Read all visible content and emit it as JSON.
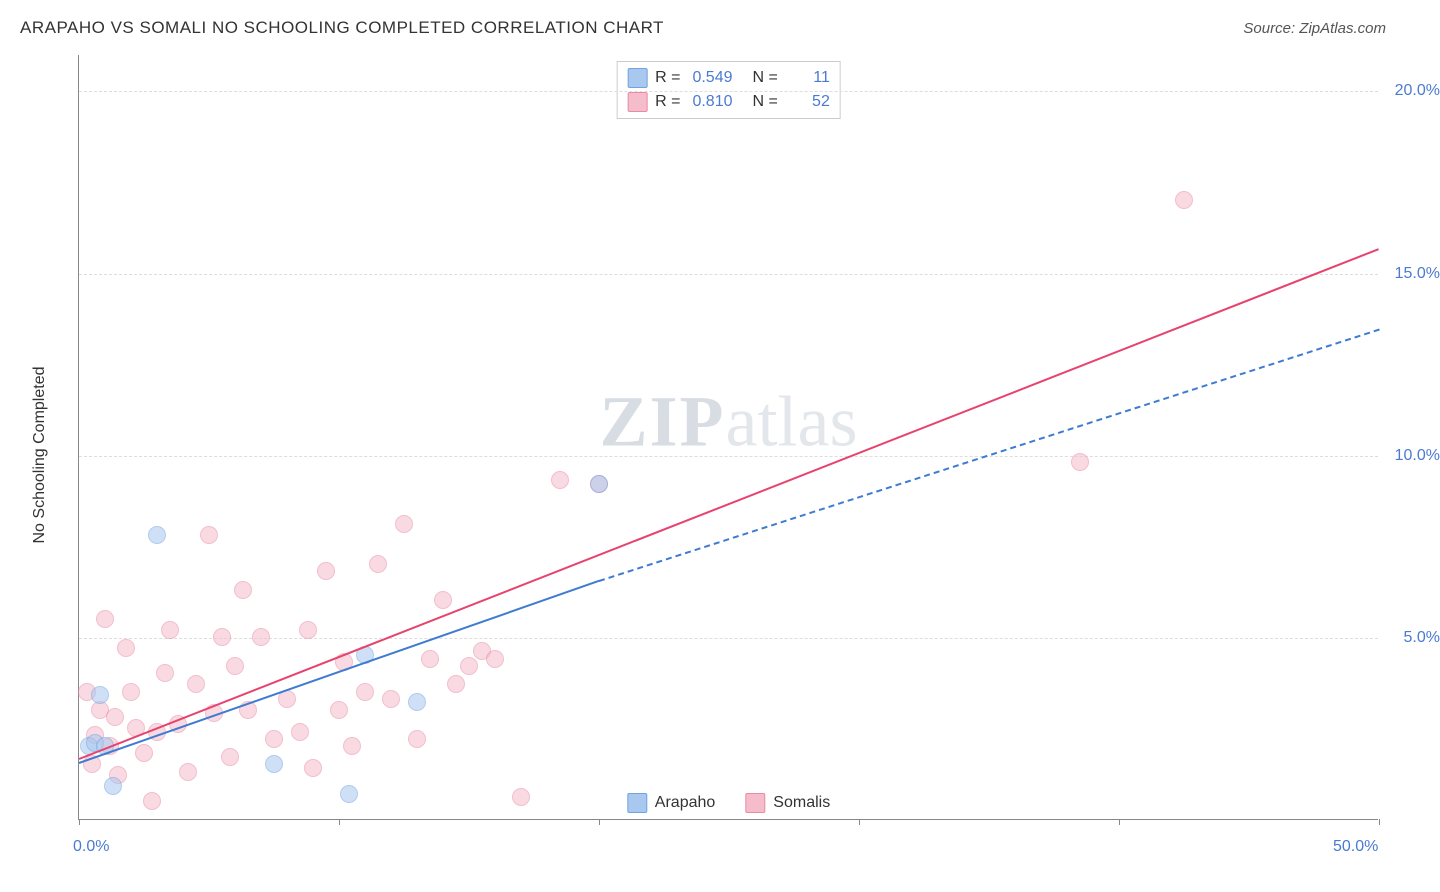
{
  "header": {
    "title": "ARAPAHO VS SOMALI NO SCHOOLING COMPLETED CORRELATION CHART",
    "source_prefix": "Source: ",
    "source_name": "ZipAtlas.com"
  },
  "watermark": {
    "zip": "ZIP",
    "atlas": "atlas"
  },
  "chart": {
    "type": "scatter",
    "ylabel": "No Schooling Completed",
    "xlim": [
      0,
      50
    ],
    "ylim": [
      0,
      21
    ],
    "xtick_positions": [
      0,
      10,
      20,
      30,
      40,
      50
    ],
    "xtick_labels_shown": {
      "0": "0.0%",
      "50": "50.0%"
    },
    "ytick_positions": [
      5,
      10,
      15,
      20
    ],
    "ytick_labels": {
      "5": "5.0%",
      "10": "10.0%",
      "15": "15.0%",
      "20": "20.0%"
    },
    "grid_color": "#dddddd",
    "background_color": "#ffffff",
    "axis_color": "#888888",
    "tick_label_color": "#4a7bd0",
    "series": [
      {
        "name": "Arapaho",
        "color_fill": "#a8c8f0",
        "color_border": "#6fa3e0",
        "r": 0.549,
        "n": 11,
        "trend": {
          "x0": 0,
          "y0": 1.6,
          "x1": 20,
          "y1": 6.6,
          "dash_x1": 50,
          "dash_y1": 13.5,
          "color": "#3f7bd1"
        },
        "points": [
          [
            0.4,
            2.0
          ],
          [
            0.6,
            2.1
          ],
          [
            0.8,
            3.4
          ],
          [
            1.0,
            2.0
          ],
          [
            1.3,
            0.9
          ],
          [
            3.0,
            7.8
          ],
          [
            7.5,
            1.5
          ],
          [
            10.4,
            0.7
          ],
          [
            11.0,
            4.5
          ],
          [
            13.0,
            3.2
          ],
          [
            20.0,
            9.2
          ]
        ]
      },
      {
        "name": "Somalis",
        "color_fill": "#f5bccb",
        "color_border": "#e88ba3",
        "r": 0.81,
        "n": 52,
        "trend": {
          "x0": 0,
          "y0": 1.7,
          "x1": 50,
          "y1": 15.7,
          "color": "#e6436d"
        },
        "points": [
          [
            0.3,
            3.5
          ],
          [
            0.5,
            1.5
          ],
          [
            0.6,
            2.3
          ],
          [
            0.8,
            3.0
          ],
          [
            1.0,
            5.5
          ],
          [
            1.2,
            2.0
          ],
          [
            1.4,
            2.8
          ],
          [
            1.5,
            1.2
          ],
          [
            1.8,
            4.7
          ],
          [
            2.0,
            3.5
          ],
          [
            2.2,
            2.5
          ],
          [
            2.5,
            1.8
          ],
          [
            2.8,
            0.5
          ],
          [
            3.0,
            2.4
          ],
          [
            3.3,
            4.0
          ],
          [
            3.5,
            5.2
          ],
          [
            3.8,
            2.6
          ],
          [
            4.2,
            1.3
          ],
          [
            4.5,
            3.7
          ],
          [
            5.0,
            7.8
          ],
          [
            5.2,
            2.9
          ],
          [
            5.5,
            5.0
          ],
          [
            5.8,
            1.7
          ],
          [
            6.0,
            4.2
          ],
          [
            6.3,
            6.3
          ],
          [
            6.5,
            3.0
          ],
          [
            7.0,
            5.0
          ],
          [
            7.5,
            2.2
          ],
          [
            8.0,
            3.3
          ],
          [
            8.5,
            2.4
          ],
          [
            8.8,
            5.2
          ],
          [
            9.0,
            1.4
          ],
          [
            9.5,
            6.8
          ],
          [
            10.0,
            3.0
          ],
          [
            10.2,
            4.3
          ],
          [
            10.5,
            2.0
          ],
          [
            11.0,
            3.5
          ],
          [
            11.5,
            7.0
          ],
          [
            12.0,
            3.3
          ],
          [
            12.5,
            8.1
          ],
          [
            13.0,
            2.2
          ],
          [
            13.5,
            4.4
          ],
          [
            14.0,
            6.0
          ],
          [
            14.5,
            3.7
          ],
          [
            15.0,
            4.2
          ],
          [
            15.5,
            4.6
          ],
          [
            16.0,
            4.4
          ],
          [
            17.0,
            0.6
          ],
          [
            18.5,
            9.3
          ],
          [
            20.0,
            9.2
          ],
          [
            38.5,
            9.8
          ],
          [
            42.5,
            17.0
          ]
        ]
      }
    ]
  },
  "legend_top_format": {
    "r_label": "R =",
    "n_label": "N ="
  },
  "legend_bottom": [
    {
      "label": "Arapaho",
      "fill": "#a8c8f0",
      "border": "#6fa3e0"
    },
    {
      "label": "Somalis",
      "fill": "#f5bccb",
      "border": "#e88ba3"
    }
  ]
}
